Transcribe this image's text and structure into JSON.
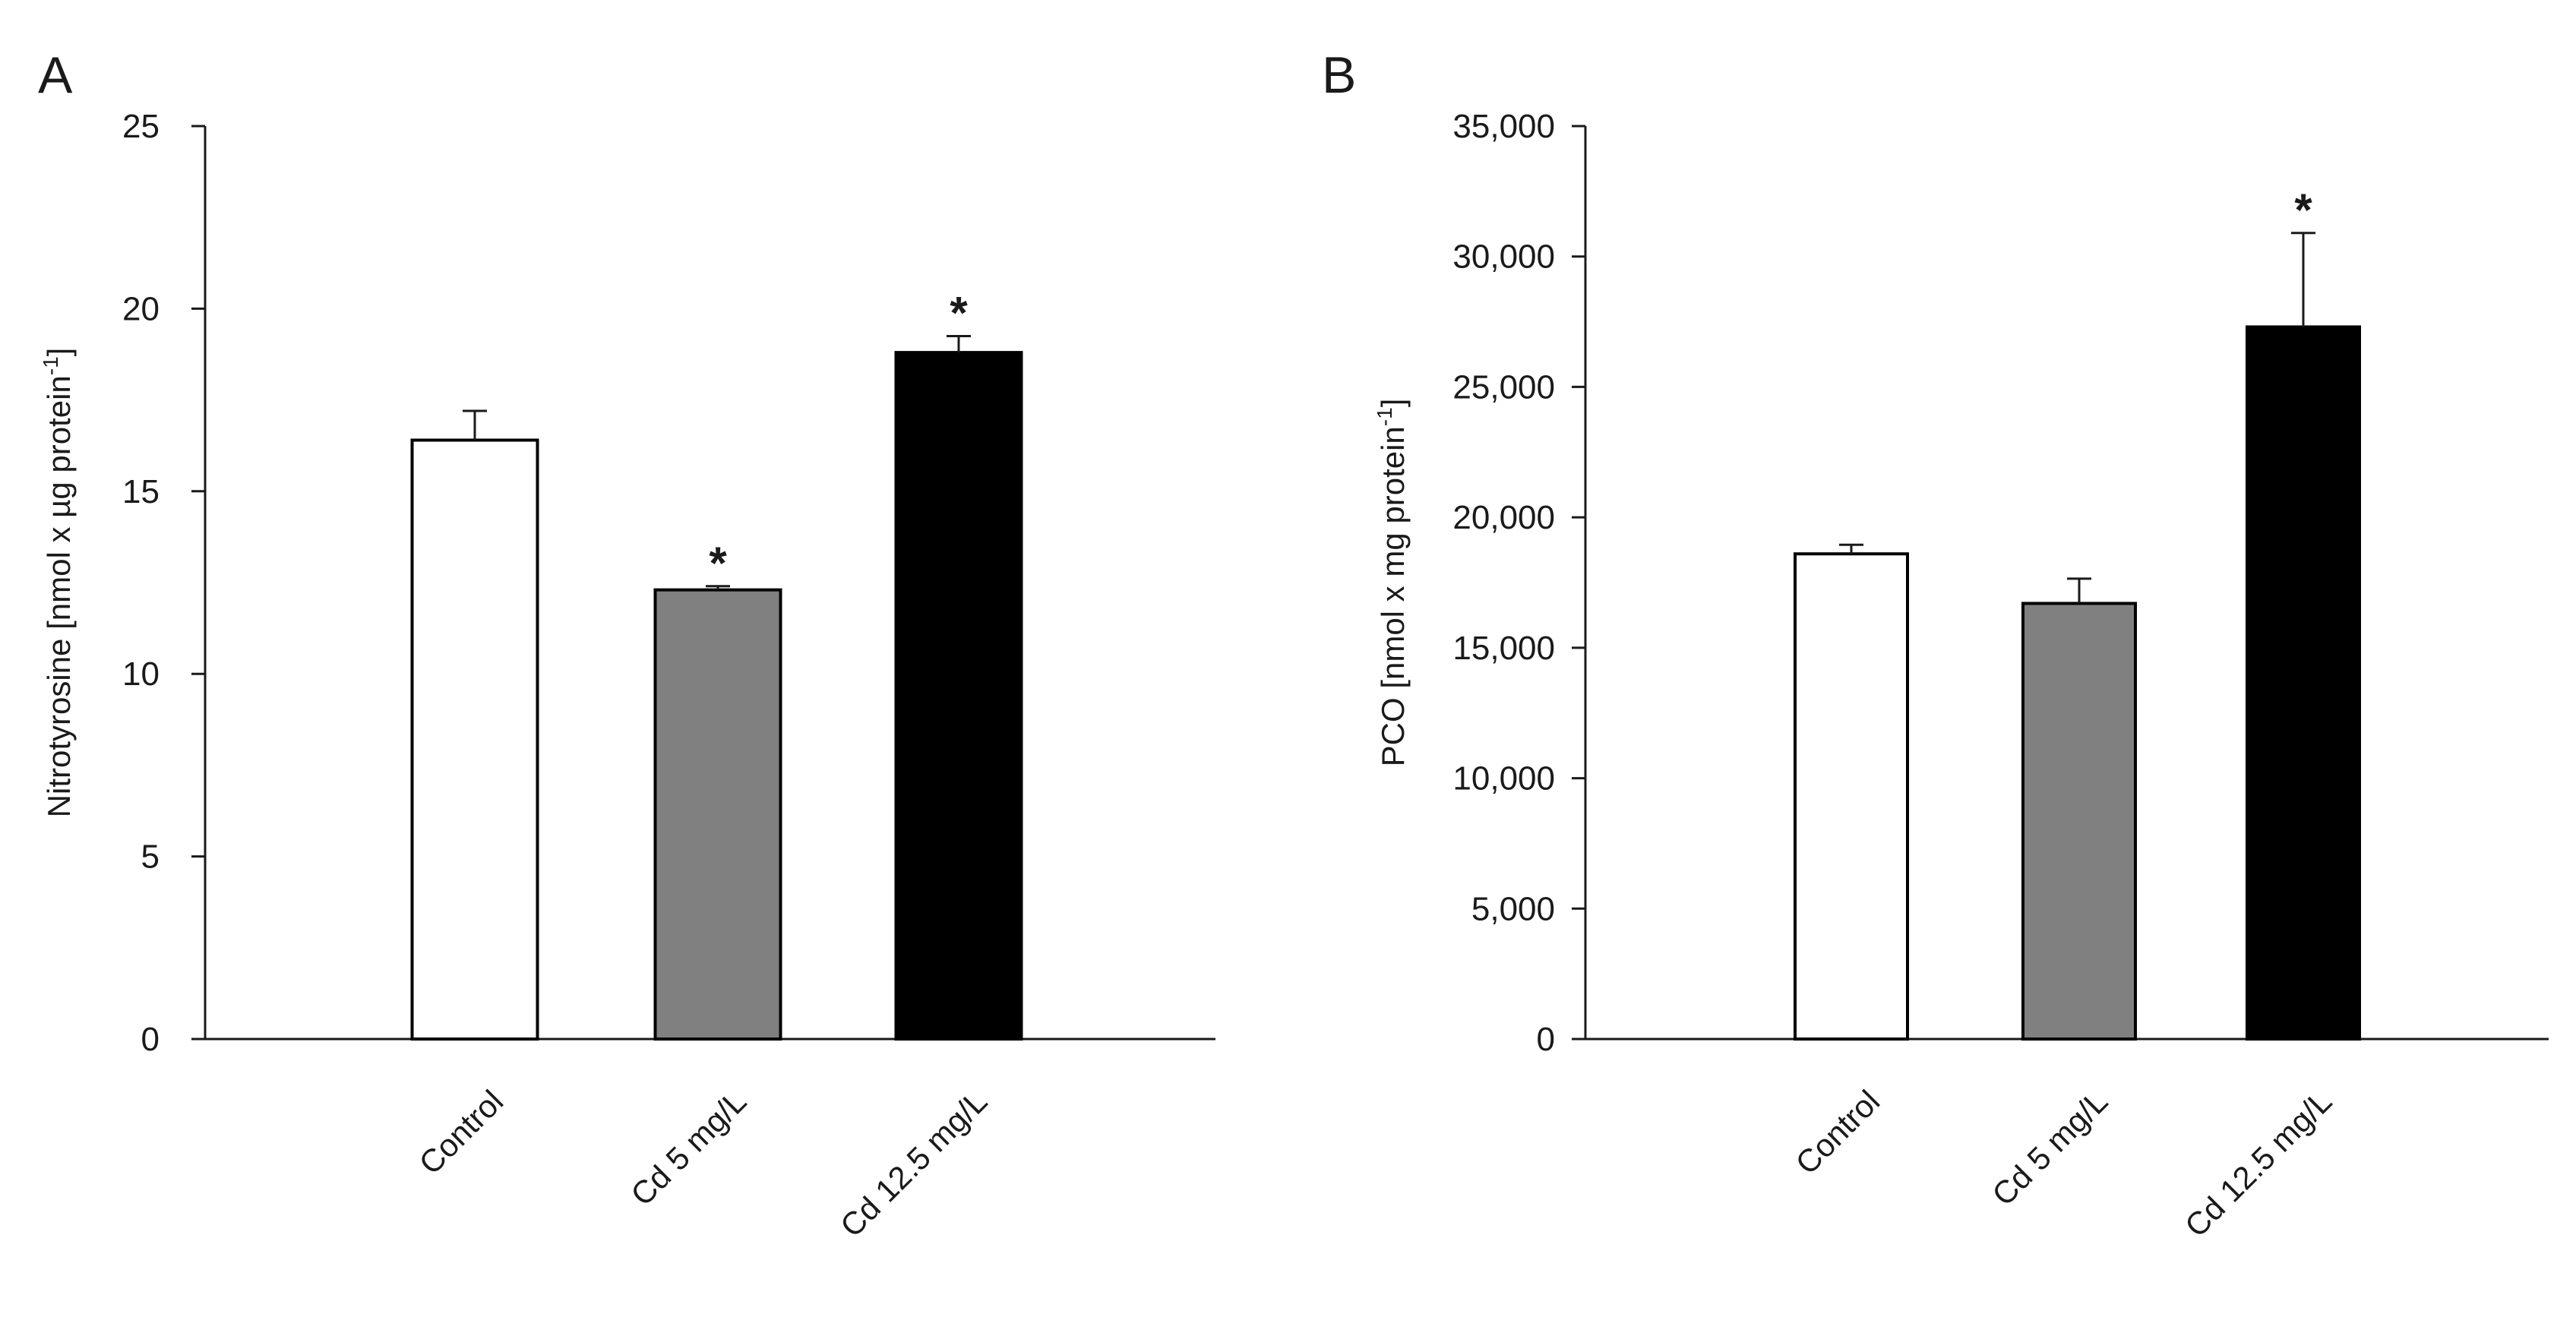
{
  "chart_data": [
    {
      "type": "bar",
      "panel": "A",
      "categories": [
        "Control",
        "Cd 5 mg/L",
        "Cd 12.5 mg/L"
      ],
      "values": [
        16.4,
        12.3,
        18.8
      ],
      "errors": [
        0.8,
        0.1,
        0.45
      ],
      "significance": [
        "",
        "*",
        "*"
      ],
      "ylabel": "Nitrotyrosine [nmol x µg protein",
      "ylabel_sup": "-1",
      "ylabel_end": "]",
      "ylim": [
        0,
        25
      ],
      "yticks": [
        0,
        5,
        10,
        15,
        20,
        25
      ],
      "ytick_labels": [
        "0",
        "5",
        "10",
        "15",
        "20",
        "25"
      ],
      "colors": [
        "#ffffff",
        "#808080",
        "#000000"
      ],
      "grid": false
    },
    {
      "type": "bar",
      "panel": "B",
      "categories": [
        "Control",
        "Cd 5 mg/L",
        "Cd 12.5 mg/L"
      ],
      "values": [
        18600,
        16700,
        27300
      ],
      "errors": [
        350,
        950,
        3600
      ],
      "significance": [
        "",
        "",
        "*"
      ],
      "ylabel": "PCO [nmol x mg protein",
      "ylabel_sup": "-1",
      "ylabel_end": "]",
      "ylim": [
        0,
        35000
      ],
      "yticks": [
        0,
        5000,
        10000,
        15000,
        20000,
        25000,
        30000,
        35000
      ],
      "ytick_labels": [
        "0",
        "5,000",
        "10,000",
        "15,000",
        "20,000",
        "25,000",
        "30,000",
        "35,000"
      ],
      "colors": [
        "#ffffff",
        "#808080",
        "#000000"
      ],
      "grid": false
    }
  ]
}
